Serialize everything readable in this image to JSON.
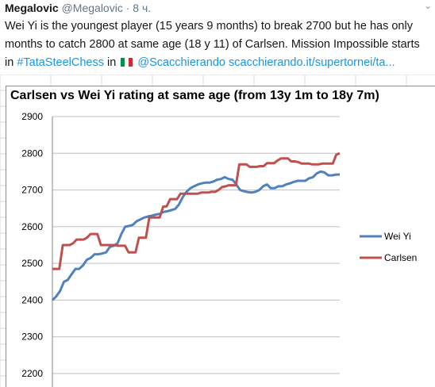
{
  "tweet": {
    "author_name": "Megalovic",
    "author_handle": "@Megalovic",
    "separator": "·",
    "time": "8 ч.",
    "line1": "Wei Yi is the youngest player (15 years 9 months) to break 2700 but he has only",
    "line2": "months to catch 2800 at same age (18 y 11) of Carlsen. Mission Impossible starts",
    "line3_prefix": "in",
    "hashtag": "#TataSteelChess",
    "line3_in": "in",
    "mention": "@Scacchierando",
    "url": "scacchierando.it/supertornei/ta...",
    "flag_colors": [
      "#009246",
      "#ffffff",
      "#ce2b37"
    ]
  },
  "chart_data": {
    "type": "line",
    "title": "Carlsen vs Wei Yi rating at same age (from 13y 1m to 18y 7m)",
    "ylim": [
      2200,
      2900
    ],
    "yticks": [
      "2200",
      "2300",
      "2400",
      "2500",
      "2600",
      "2700",
      "2800",
      "2900"
    ],
    "grid": true,
    "legend": "right",
    "series": [
      {
        "name": "Wei Yi",
        "color": "#4f81bd",
        "values": [
          2400,
          2410,
          2425,
          2450,
          2455,
          2470,
          2485,
          2485,
          2495,
          2510,
          2515,
          2525,
          2525,
          2527,
          2530,
          2545,
          2548,
          2555,
          2580,
          2600,
          2602,
          2605,
          2615,
          2620,
          2625,
          2628,
          2630,
          2633,
          2635,
          2640,
          2642,
          2645,
          2648,
          2660,
          2680,
          2695,
          2705,
          2710,
          2715,
          2718,
          2720,
          2720,
          2723,
          2728,
          2730,
          2735,
          2730,
          2728,
          2715,
          2700,
          2697,
          2694,
          2693,
          2695,
          2700,
          2710,
          2715,
          2705,
          2705,
          2710,
          2710,
          2715,
          2718,
          2722,
          2725,
          2725,
          2725,
          2732,
          2735,
          2745,
          2750,
          2748,
          2740,
          2740,
          2742,
          2742
        ]
      },
      {
        "name": "Carlsen",
        "color": "#c0504d",
        "values": [
          2485,
          2485,
          2485,
          2550,
          2550,
          2550,
          2555,
          2565,
          2565,
          2565,
          2570,
          2580,
          2580,
          2580,
          2550,
          2550,
          2550,
          2550,
          2550,
          2548,
          2548,
          2548,
          2530,
          2530,
          2530,
          2570,
          2570,
          2570,
          2625,
          2625,
          2625,
          2625,
          2655,
          2655,
          2675,
          2675,
          2675,
          2690,
          2690,
          2690,
          2690,
          2690,
          2690,
          2693,
          2693,
          2693,
          2695,
          2695,
          2700,
          2708,
          2710,
          2713,
          2713,
          2713,
          2770,
          2770,
          2770,
          2763,
          2763,
          2763,
          2765,
          2765,
          2773,
          2773,
          2773,
          2780,
          2786,
          2786,
          2786,
          2778,
          2778,
          2776,
          2772,
          2772,
          2772,
          2770,
          2770,
          2770,
          2772,
          2772,
          2772,
          2772,
          2796,
          2800
        ]
      }
    ]
  }
}
